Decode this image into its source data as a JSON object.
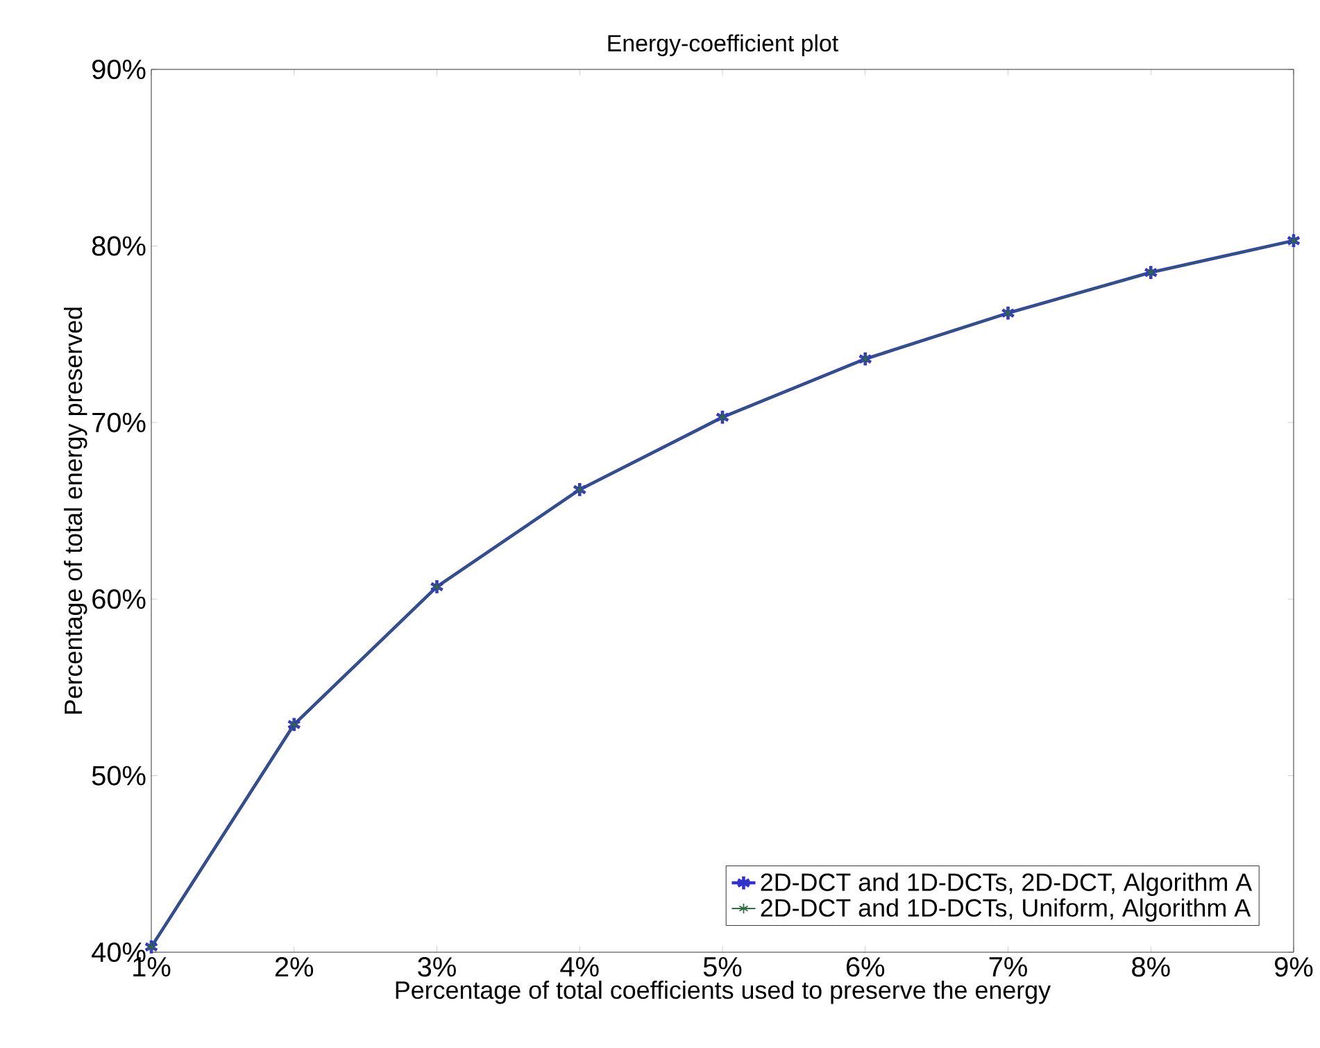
{
  "chart_data": {
    "type": "line",
    "title": "Energy-coefficient plot",
    "xlabel": "Percentage of total coefficients used to preserve the energy",
    "ylabel": "Percentage of total energy preserved",
    "x": [
      1,
      2,
      3,
      4,
      5,
      6,
      7,
      8,
      9
    ],
    "series": [
      {
        "name": "2D-DCT and 1D-DCTs, 2D-DCT, Algorithm A",
        "color": "#3333cc",
        "marker": "cross",
        "values": [
          40.3,
          52.9,
          60.7,
          66.2,
          70.3,
          73.6,
          76.2,
          78.5,
          80.3
        ]
      },
      {
        "name": "2D-DCT and 1D-DCTs, Uniform, Algorithm A",
        "color": "#2e6b3e",
        "marker": "cross",
        "values": [
          40.3,
          52.9,
          60.7,
          66.2,
          70.3,
          73.6,
          76.2,
          78.5,
          80.3
        ]
      }
    ],
    "xlim": [
      1,
      9
    ],
    "ylim": [
      40,
      90
    ],
    "xticks": [
      {
        "value": 1,
        "label": "1%"
      },
      {
        "value": 2,
        "label": "2%"
      },
      {
        "value": 3,
        "label": "3%"
      },
      {
        "value": 4,
        "label": "4%"
      },
      {
        "value": 5,
        "label": "5%"
      },
      {
        "value": 6,
        "label": "6%"
      },
      {
        "value": 7,
        "label": "7%"
      },
      {
        "value": 8,
        "label": "8%"
      },
      {
        "value": 9,
        "label": "9%"
      }
    ],
    "yticks": [
      {
        "value": 40,
        "label": "40%"
      },
      {
        "value": 50,
        "label": "50%"
      },
      {
        "value": 60,
        "label": "60%"
      },
      {
        "value": 70,
        "label": "70%"
      },
      {
        "value": 80,
        "label": "80%"
      },
      {
        "value": 90,
        "label": "90%"
      }
    ],
    "grid": false,
    "legend": "bottom right",
    "line_style": "solid"
  }
}
